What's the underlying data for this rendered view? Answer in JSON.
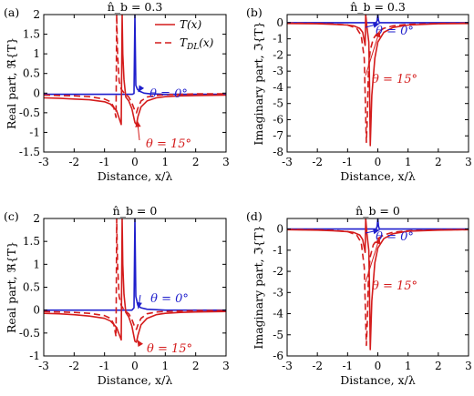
{
  "colors": {
    "blue": "#1f1fcc",
    "red": "#d41c1c",
    "axis": "#000000"
  },
  "legend": {
    "entries": [
      {
        "label": "T(x)",
        "style": "solid"
      },
      {
        "label": "T_DL(x)",
        "style": "dashed"
      }
    ],
    "placement": "top-right of panel (a)"
  },
  "chart_data": [
    {
      "type": "line",
      "panel": "(a)",
      "title": "n̂_b = 0.3",
      "xlabel": "Distance, x/λ",
      "ylabel": "Real part, ℜ{T}",
      "xlim": [
        -3,
        3
      ],
      "ylim": [
        -1.5,
        2
      ],
      "xticks": [
        -3,
        -2,
        -1,
        0,
        1,
        2,
        3
      ],
      "yticks": [
        -1.5,
        -1,
        -0.5,
        0,
        0.5,
        1,
        1.5,
        2
      ],
      "yticklabels": [
        "-1.5",
        "-1",
        "-0.5",
        "0",
        "0.5",
        "1",
        "1.5",
        "2"
      ],
      "annotations": [
        {
          "text": "θ = 0°",
          "color": "blue",
          "points_to": [
            0.05,
            0.05
          ]
        },
        {
          "text": "θ = 15°",
          "color": "red",
          "points_to": [
            0.02,
            -0.7
          ]
        }
      ],
      "series": [
        {
          "color": "blue",
          "style": "solid",
          "x": [
            -3,
            -2,
            -1,
            -0.5,
            -0.3,
            -0.15,
            -0.08,
            -0.03,
            0.0,
            0.03,
            0.08,
            0.15,
            0.3,
            0.5,
            1,
            2,
            3
          ],
          "y": [
            -0.03,
            -0.03,
            -0.03,
            -0.03,
            -0.03,
            -0.03,
            -0.03,
            -0.01,
            2.0,
            0.2,
            0.1,
            0.05,
            0.0,
            -0.02,
            -0.03,
            -0.03,
            -0.03
          ]
        },
        {
          "color": "red",
          "style": "solid",
          "x": [
            -3,
            -2.5,
            -2,
            -1.5,
            -1,
            -0.8,
            -0.6,
            -0.45,
            -0.42,
            -0.4,
            -0.36,
            -0.3,
            -0.2,
            -0.1,
            0.0,
            0.05,
            0.1,
            0.2,
            0.4,
            0.7,
            1,
            1.5,
            2,
            3
          ],
          "y": [
            -0.12,
            -0.13,
            -0.15,
            -0.17,
            -0.22,
            -0.28,
            -0.45,
            -0.8,
            2.0,
            1.0,
            0.35,
            -0.1,
            -0.2,
            -0.4,
            -0.75,
            -0.8,
            -0.6,
            -0.35,
            -0.2,
            -0.12,
            -0.09,
            -0.07,
            -0.06,
            -0.05
          ]
        },
        {
          "color": "red",
          "style": "dashed",
          "x": [
            -3,
            -2.5,
            -2,
            -1.5,
            -1,
            -0.8,
            -0.7,
            -0.62,
            -0.6,
            -0.57,
            -0.52,
            -0.45,
            -0.35,
            -0.2,
            -0.1,
            0.0,
            0.05,
            0.1,
            0.2,
            0.4,
            0.7,
            1,
            1.5,
            2,
            3
          ],
          "y": [
            -0.05,
            -0.06,
            -0.07,
            -0.09,
            -0.15,
            -0.22,
            -0.35,
            -0.62,
            2.0,
            1.0,
            0.3,
            0.1,
            0.0,
            -0.1,
            -0.25,
            -0.45,
            -0.5,
            -0.38,
            -0.2,
            -0.1,
            -0.06,
            -0.04,
            -0.03,
            -0.02,
            -0.02
          ]
        }
      ]
    },
    {
      "type": "line",
      "panel": "(b)",
      "title": "n̂_b = 0.3",
      "xlabel": "Distance, x/λ",
      "ylabel": "Imaginary part, ℑ{T}",
      "xlim": [
        -3,
        3
      ],
      "ylim": [
        -8,
        0.5
      ],
      "xticks": [
        -3,
        -2,
        -1,
        0,
        1,
        2,
        3
      ],
      "yticks": [
        -8,
        -7,
        -6,
        -5,
        -4,
        -3,
        -2,
        -1,
        0
      ],
      "yticklabels": [
        "-8",
        "-7",
        "-6",
        "-5",
        "-4",
        "-3",
        "-2",
        "-1",
        "0"
      ],
      "annotations": [
        {
          "text": "θ = 0°",
          "color": "blue",
          "points_to": [
            0.0,
            0.0
          ]
        },
        {
          "text": "θ = 15°",
          "color": "red",
          "points_to": [
            0.0,
            -0.5
          ]
        }
      ],
      "series": [
        {
          "color": "blue",
          "style": "solid",
          "x": [
            -3,
            -1,
            -0.3,
            -0.05,
            -0.02,
            0.0,
            0.02,
            0.05,
            0.3,
            1,
            3
          ],
          "y": [
            0,
            0,
            0,
            0,
            0.15,
            0.5,
            0.15,
            0,
            0,
            0,
            0
          ]
        },
        {
          "color": "red",
          "style": "solid",
          "x": [
            -3,
            -2,
            -1.5,
            -1,
            -0.8,
            -0.6,
            -0.5,
            -0.42,
            -0.4,
            -0.36,
            -0.3,
            -0.28,
            -0.25,
            -0.2,
            -0.1,
            0.0,
            0.2,
            0.5,
            1,
            2,
            3
          ],
          "y": [
            -0.05,
            -0.07,
            -0.1,
            -0.15,
            -0.2,
            -0.35,
            -0.6,
            -1.4,
            0.5,
            -0.3,
            -1.2,
            -3.0,
            -7.6,
            -4.5,
            -2.2,
            -1.2,
            -0.6,
            -0.3,
            -0.15,
            -0.07,
            -0.05
          ]
        },
        {
          "color": "red",
          "style": "dashed",
          "x": [
            -3,
            -2,
            -1.5,
            -1,
            -0.7,
            -0.55,
            -0.45,
            -0.38,
            -0.35,
            -0.32,
            -0.3,
            -0.25,
            -0.15,
            0.0,
            0.2,
            0.5,
            1,
            2,
            3
          ],
          "y": [
            -0.03,
            -0.05,
            -0.08,
            -0.15,
            -0.35,
            -0.8,
            -2.2,
            -7.4,
            -6.0,
            -3.5,
            -2.6,
            -1.7,
            -1.0,
            -0.6,
            -0.35,
            -0.2,
            -0.1,
            -0.05,
            -0.03
          ]
        }
      ]
    },
    {
      "type": "line",
      "panel": "(c)",
      "title": "n̂_b = 0",
      "xlabel": "Distance, x/λ",
      "ylabel": "Real part, ℜ{T}",
      "xlim": [
        -3,
        3
      ],
      "ylim": [
        -1,
        2
      ],
      "xticks": [
        -3,
        -2,
        -1,
        0,
        1,
        2,
        3
      ],
      "yticks": [
        -1,
        -0.5,
        0,
        0.5,
        1,
        1.5,
        2
      ],
      "yticklabels": [
        "-1",
        "-0.5",
        "0",
        "0.5",
        "1",
        "1.5",
        "2"
      ],
      "annotations": [
        {
          "text": "θ = 0°",
          "color": "blue",
          "points_to": [
            0.05,
            0.05
          ]
        },
        {
          "text": "θ = 15°",
          "color": "red",
          "points_to": [
            0.02,
            -0.65
          ]
        }
      ],
      "series": [
        {
          "color": "blue",
          "style": "solid",
          "x": [
            -3,
            -1,
            -0.3,
            -0.1,
            -0.03,
            0.0,
            0.03,
            0.1,
            0.2,
            0.4,
            1,
            3
          ],
          "y": [
            0,
            0,
            0,
            0,
            0.05,
            2.0,
            0.3,
            0.1,
            0.05,
            0.02,
            0,
            0
          ]
        },
        {
          "color": "red",
          "style": "solid",
          "x": [
            -3,
            -2.5,
            -2,
            -1.5,
            -1,
            -0.8,
            -0.6,
            -0.45,
            -0.42,
            -0.4,
            -0.36,
            -0.3,
            -0.2,
            -0.1,
            0.0,
            0.05,
            0.1,
            0.2,
            0.4,
            0.7,
            1,
            1.5,
            2,
            3
          ],
          "y": [
            -0.07,
            -0.08,
            -0.1,
            -0.13,
            -0.18,
            -0.24,
            -0.38,
            -0.65,
            2.0,
            1.0,
            0.35,
            -0.05,
            -0.15,
            -0.35,
            -0.68,
            -0.7,
            -0.55,
            -0.32,
            -0.18,
            -0.1,
            -0.07,
            -0.05,
            -0.04,
            -0.03
          ]
        },
        {
          "color": "red",
          "style": "dashed",
          "x": [
            -3,
            -2.5,
            -2,
            -1.5,
            -1,
            -0.8,
            -0.7,
            -0.62,
            -0.6,
            -0.57,
            -0.52,
            -0.45,
            -0.35,
            -0.2,
            -0.1,
            0.0,
            0.05,
            0.1,
            0.2,
            0.4,
            0.7,
            1,
            1.5,
            2,
            3
          ],
          "y": [
            -0.03,
            -0.04,
            -0.05,
            -0.07,
            -0.12,
            -0.18,
            -0.3,
            -0.58,
            2.0,
            1.0,
            0.3,
            0.1,
            0.0,
            -0.08,
            -0.2,
            -0.38,
            -0.42,
            -0.32,
            -0.18,
            -0.08,
            -0.04,
            -0.03,
            -0.02,
            -0.01,
            -0.01
          ]
        }
      ]
    },
    {
      "type": "line",
      "panel": "(d)",
      "title": "n̂_b = 0",
      "xlabel": "Distance, x/λ",
      "ylabel": "Imaginary part, ℑ{T}",
      "xlim": [
        -3,
        3
      ],
      "ylim": [
        -6,
        0.5
      ],
      "xticks": [
        -3,
        -2,
        -1,
        0,
        1,
        2,
        3
      ],
      "yticks": [
        -6,
        -5,
        -4,
        -3,
        -2,
        -1,
        0
      ],
      "yticklabels": [
        "-6",
        "-5",
        "-4",
        "-3",
        "-2",
        "-1",
        "0"
      ],
      "annotations": [
        {
          "text": "θ = 0°",
          "color": "blue",
          "points_to": [
            0.0,
            0.0
          ]
        },
        {
          "text": "θ = 15°",
          "color": "red",
          "points_to": [
            0.0,
            -0.4
          ]
        }
      ],
      "series": [
        {
          "color": "blue",
          "style": "solid",
          "x": [
            -3,
            -1,
            -0.3,
            -0.05,
            -0.02,
            0.0,
            0.02,
            0.05,
            0.3,
            1,
            3
          ],
          "y": [
            0,
            0,
            0,
            0,
            0.15,
            0.5,
            0.15,
            0,
            0,
            0,
            0
          ]
        },
        {
          "color": "red",
          "style": "solid",
          "x": [
            -3,
            -2,
            -1.5,
            -1,
            -0.8,
            -0.6,
            -0.5,
            -0.42,
            -0.4,
            -0.36,
            -0.3,
            -0.28,
            -0.25,
            -0.2,
            -0.1,
            0.0,
            0.2,
            0.5,
            1,
            2,
            3
          ],
          "y": [
            -0.03,
            -0.05,
            -0.08,
            -0.12,
            -0.16,
            -0.28,
            -0.5,
            -1.1,
            0.5,
            -0.25,
            -1.0,
            -2.4,
            -5.7,
            -3.4,
            -1.6,
            -0.9,
            -0.45,
            -0.22,
            -0.1,
            -0.05,
            -0.03
          ]
        },
        {
          "color": "red",
          "style": "dashed",
          "x": [
            -3,
            -2,
            -1.5,
            -1,
            -0.7,
            -0.55,
            -0.45,
            -0.38,
            -0.35,
            -0.32,
            -0.3,
            -0.25,
            -0.15,
            0.0,
            0.2,
            0.5,
            1,
            2,
            3
          ],
          "y": [
            -0.02,
            -0.04,
            -0.06,
            -0.12,
            -0.28,
            -0.65,
            -1.8,
            -5.5,
            -4.5,
            -2.7,
            -2.0,
            -1.3,
            -0.75,
            -0.45,
            -0.28,
            -0.15,
            -0.08,
            -0.04,
            -0.02
          ]
        }
      ]
    }
  ]
}
